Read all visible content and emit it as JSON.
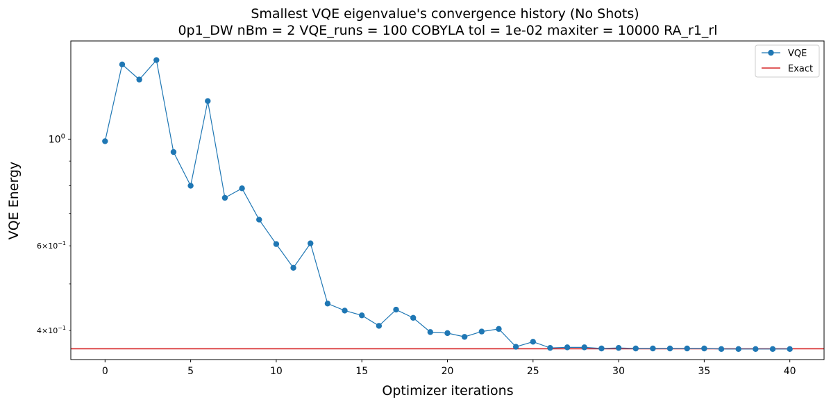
{
  "chart_data": {
    "type": "line",
    "title": "Smallest VQE eigenvalue's convergence history (No Shots)",
    "subtitle": "0p1_DW    nBm = 2    VQE_runs = 100    COBYLA    tol = 1e-02    maxiter = 10000    RA_r1_rl",
    "xlabel": "Optimizer iterations",
    "ylabel": "VQE Energy",
    "yscale": "log",
    "xlim": [
      -2,
      42
    ],
    "ylim": [
      0.348,
      1.6
    ],
    "x_ticks": [
      0,
      5,
      10,
      15,
      20,
      25,
      30,
      35,
      40
    ],
    "x_tick_labels": [
      "0",
      "5",
      "10",
      "15",
      "20",
      "25",
      "30",
      "35",
      "40"
    ],
    "y_major_ticks": [
      {
        "value": 1.0,
        "base": "10",
        "exp": "0"
      }
    ],
    "y_labeled_minor_ticks": [
      {
        "value": 0.6,
        "mant": "6",
        "base": "10",
        "exp": "−1"
      },
      {
        "value": 0.4,
        "mant": "4",
        "base": "10",
        "exp": "−1"
      }
    ],
    "y_minor_ticks": [
      0.5,
      0.7,
      0.8,
      0.9
    ],
    "grid": false,
    "legend_position": "top-right",
    "series": [
      {
        "name": "VQE",
        "color": "#1f77b4",
        "marker": "circle",
        "x": [
          0,
          1,
          2,
          3,
          4,
          5,
          6,
          7,
          8,
          9,
          10,
          11,
          12,
          13,
          14,
          15,
          16,
          17,
          18,
          19,
          20,
          21,
          22,
          23,
          24,
          25,
          26,
          27,
          28,
          29,
          30,
          31,
          32,
          33,
          34,
          35,
          36,
          37,
          38,
          39,
          40
        ],
        "y": [
          0.99,
          1.43,
          1.33,
          1.46,
          0.94,
          0.8,
          1.2,
          0.755,
          0.79,
          0.68,
          0.605,
          0.54,
          0.607,
          0.455,
          0.44,
          0.43,
          0.409,
          0.442,
          0.425,
          0.397,
          0.395,
          0.388,
          0.398,
          0.403,
          0.37,
          0.379,
          0.368,
          0.369,
          0.369,
          0.367,
          0.368,
          0.367,
          0.367,
          0.367,
          0.367,
          0.367,
          0.366,
          0.366,
          0.366,
          0.366,
          0.366
        ]
      },
      {
        "name": "Exact",
        "color": "#d62728",
        "marker": "none",
        "y_constant": 0.3665
      }
    ]
  }
}
